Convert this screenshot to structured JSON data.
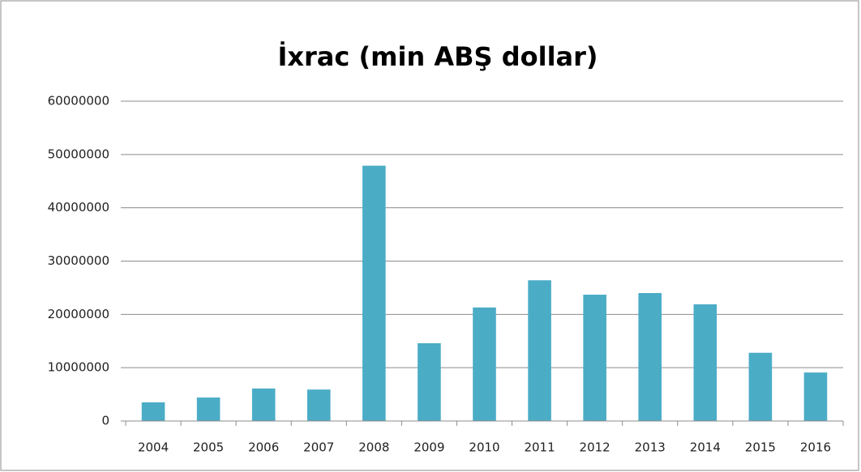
{
  "chart_data": {
    "type": "bar",
    "title": "İxrac (min ABŞ dollar)",
    "categories": [
      "2004",
      "2005",
      "2006",
      "2007",
      "2008",
      "2009",
      "2010",
      "2011",
      "2012",
      "2013",
      "2014",
      "2015",
      "2016"
    ],
    "values": [
      3500000,
      4400000,
      6100000,
      5900000,
      47900000,
      14600000,
      21300000,
      26400000,
      23700000,
      24000000,
      21900000,
      12800000,
      9100000
    ],
    "color": "#4bacc6",
    "ylim": [
      0,
      60000000
    ],
    "yticks": [
      0,
      10000000,
      20000000,
      30000000,
      40000000,
      50000000,
      60000000
    ],
    "grid": true
  }
}
